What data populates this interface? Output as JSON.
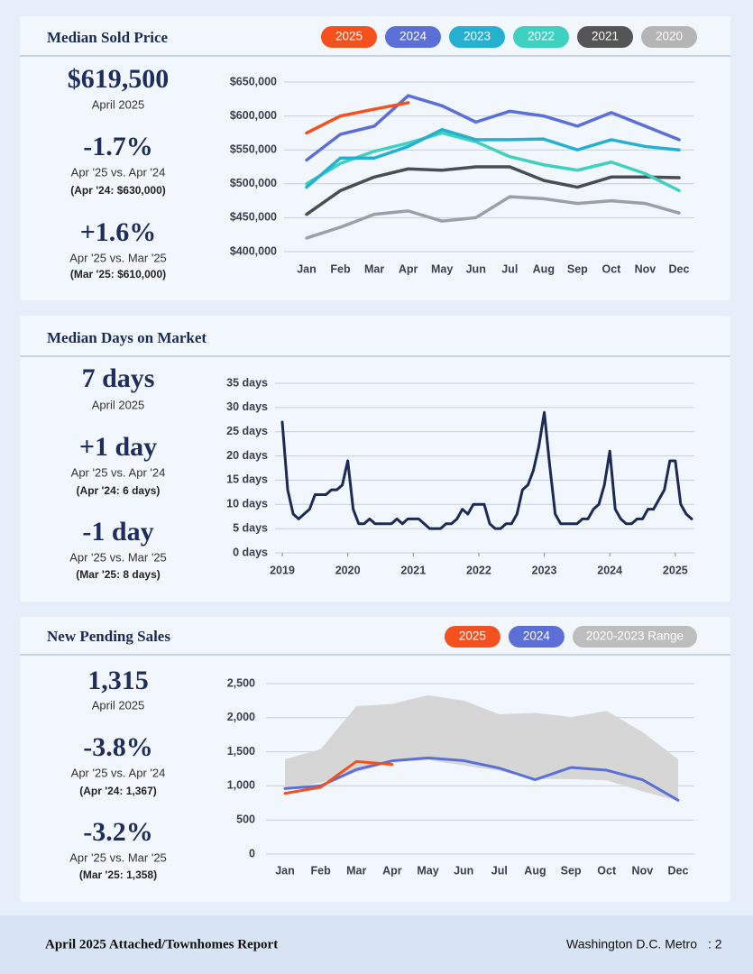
{
  "chart_data": [
    {
      "type": "line",
      "title": "Median Sold Price",
      "categories": [
        "Jan",
        "Feb",
        "Mar",
        "Apr",
        "May",
        "Jun",
        "Jul",
        "Aug",
        "Sep",
        "Oct",
        "Nov",
        "Dec"
      ],
      "series": [
        {
          "name": "2025",
          "color": "#f4511e",
          "values": [
            575000,
            600000,
            610000,
            619500,
            null,
            null,
            null,
            null,
            null,
            null,
            null,
            null
          ]
        },
        {
          "name": "2024",
          "color": "#5b6fd6",
          "values": [
            535000,
            573000,
            585000,
            630000,
            615000,
            591000,
            607000,
            600000,
            585000,
            605000,
            585000,
            565000
          ]
        },
        {
          "name": "2023",
          "color": "#26b0d0",
          "values": [
            495000,
            538000,
            538000,
            555000,
            580000,
            565000,
            565000,
            566000,
            550000,
            565000,
            555000,
            550000
          ]
        },
        {
          "name": "2022",
          "color": "#3fd1c0",
          "values": [
            500000,
            530000,
            548000,
            560000,
            575000,
            562000,
            540000,
            528000,
            520000,
            532000,
            515000,
            490000
          ]
        },
        {
          "name": "2021",
          "color": "#4a4d52",
          "values": [
            455000,
            490000,
            510000,
            522000,
            520000,
            525000,
            525000,
            505000,
            495000,
            510000,
            510000,
            509000
          ]
        },
        {
          "name": "2020",
          "color": "#9aa0a8",
          "values": [
            420000,
            436000,
            455000,
            460000,
            445000,
            450000,
            481000,
            478000,
            471000,
            475000,
            471000,
            457000
          ]
        }
      ],
      "legend_colors": [
        "#f4511e",
        "#5b6fd6",
        "#26b0d0",
        "#3fd1c0",
        "#555555",
        "#b5b5b5"
      ],
      "ylim": [
        400000,
        650000
      ],
      "yticks": [
        {
          "value": 400000,
          "label": "$400,000"
        },
        {
          "value": 450000,
          "label": "$450,000"
        },
        {
          "value": 500000,
          "label": "$500,000"
        },
        {
          "value": 550000,
          "label": "$550,000"
        },
        {
          "value": 600000,
          "label": "$600,000"
        },
        {
          "value": 650000,
          "label": "$650,000"
        }
      ],
      "grid": true
    },
    {
      "type": "line",
      "title": "Median Days on Market",
      "x": [
        2019,
        2019.083,
        2019.167,
        2019.25,
        2019.333,
        2019.417,
        2019.5,
        2019.583,
        2019.667,
        2019.75,
        2019.833,
        2019.917,
        2020,
        2020.083,
        2020.167,
        2020.25,
        2020.333,
        2020.417,
        2020.5,
        2020.583,
        2020.667,
        2020.75,
        2020.833,
        2020.917,
        2021,
        2021.083,
        2021.167,
        2021.25,
        2021.333,
        2021.417,
        2021.5,
        2021.583,
        2021.667,
        2021.75,
        2021.833,
        2021.917,
        2022,
        2022.083,
        2022.167,
        2022.25,
        2022.333,
        2022.417,
        2022.5,
        2022.583,
        2022.667,
        2022.75,
        2022.833,
        2022.917,
        2023,
        2023.083,
        2023.167,
        2023.25,
        2023.333,
        2023.417,
        2023.5,
        2023.583,
        2023.667,
        2023.75,
        2023.833,
        2023.917,
        2024,
        2024.083,
        2024.167,
        2024.25,
        2024.333,
        2024.417,
        2024.5,
        2024.583,
        2024.667,
        2024.75,
        2024.833,
        2024.917,
        2025,
        2025.083,
        2025.167,
        2025.25
      ],
      "values": [
        27,
        13,
        8,
        7,
        8,
        9,
        12,
        12,
        12,
        13,
        13,
        14,
        19,
        9,
        6,
        6,
        7,
        6,
        6,
        6,
        6,
        7,
        6,
        7,
        7,
        7,
        6,
        5,
        5,
        5,
        6,
        6,
        7,
        9,
        8,
        10,
        10,
        10,
        6,
        5,
        5,
        6,
        6,
        8,
        13,
        14,
        17,
        22,
        29,
        18,
        8,
        6,
        6,
        6,
        6,
        7,
        7,
        9,
        10,
        14,
        21,
        9,
        7,
        6,
        6,
        7,
        7,
        9,
        9,
        11,
        13,
        19,
        19,
        10,
        8,
        7
      ],
      "color": "#1c2a55",
      "xlim": [
        2019,
        2025.25
      ],
      "xticks": [
        2019,
        2020,
        2021,
        2022,
        2023,
        2024,
        2025
      ],
      "ylim": [
        0,
        35
      ],
      "yticks": [
        {
          "value": 0,
          "label": "0 days"
        },
        {
          "value": 5,
          "label": "5 days"
        },
        {
          "value": 10,
          "label": "10 days"
        },
        {
          "value": 15,
          "label": "15 days"
        },
        {
          "value": 20,
          "label": "20 days"
        },
        {
          "value": 25,
          "label": "25 days"
        },
        {
          "value": 30,
          "label": "30 days"
        },
        {
          "value": 35,
          "label": "35 days"
        }
      ],
      "grid": true
    },
    {
      "type": "line",
      "title": "New Pending Sales",
      "categories": [
        "Jan",
        "Feb",
        "Mar",
        "Apr",
        "May",
        "Jun",
        "Jul",
        "Aug",
        "Sep",
        "Oct",
        "Nov",
        "Dec"
      ],
      "series": [
        {
          "name": "2025",
          "color": "#f4511e",
          "values": [
            890,
            980,
            1358,
            1315,
            null,
            null,
            null,
            null,
            null,
            null,
            null,
            null
          ]
        },
        {
          "name": "2024",
          "color": "#5b6fd6",
          "values": [
            960,
            1000,
            1240,
            1367,
            1410,
            1370,
            1260,
            1090,
            1270,
            1230,
            1090,
            790
          ]
        }
      ],
      "range": {
        "name": "2020-2023 Range",
        "color": "#d6d6d6",
        "legend_color": "#bdbdbd",
        "lower": [
          950,
          1050,
          1200,
          1350,
          1380,
          1300,
          1220,
          1100,
          1100,
          1080,
          920,
          780
        ],
        "upper": [
          1390,
          1540,
          2170,
          2200,
          2330,
          2250,
          2050,
          2070,
          2010,
          2100,
          1790,
          1390
        ]
      },
      "ylim": [
        0,
        2500
      ],
      "yticks": [
        0,
        500,
        {
          "value": 1000,
          "label": "1,000"
        },
        {
          "value": 1500,
          "label": "1,500"
        },
        {
          "value": 2000,
          "label": "2,000"
        },
        {
          "value": 2500,
          "label": "2,500"
        }
      ],
      "grid": true
    }
  ],
  "stats": [
    {
      "value": "$619,500",
      "period": "April 2025",
      "comparisons": [
        {
          "change": "-1.7%",
          "versus": "Apr '25 vs. Apr '24",
          "prior": "(Apr '24: $630,000)"
        },
        {
          "change": "+1.6%",
          "versus": "Apr '25 vs. Mar '25",
          "prior": "(Mar '25: $610,000)"
        }
      ]
    },
    {
      "value": "7 days",
      "period": "April 2025",
      "comparisons": [
        {
          "change": "+1 day",
          "versus": "Apr '25 vs. Apr '24",
          "prior": "(Apr '24: 6 days)"
        },
        {
          "change": "-1 day",
          "versus": "Apr '25 vs. Mar '25",
          "prior": "(Mar '25: 8 days)"
        }
      ]
    },
    {
      "value": "1,315",
      "period": "April 2025",
      "comparisons": [
        {
          "change": "-3.8%",
          "versus": "Apr '25 vs. Apr '24",
          "prior": "(Apr '24: 1,367)"
        },
        {
          "change": "-3.2%",
          "versus": "Apr '25 vs. Mar '25",
          "prior": "(Mar '25: 1,358)"
        }
      ]
    }
  ],
  "footer": {
    "report": "April 2025 Attached/Townhomes Report",
    "market": "Washington D.C. Metro",
    "page": ": 2"
  }
}
